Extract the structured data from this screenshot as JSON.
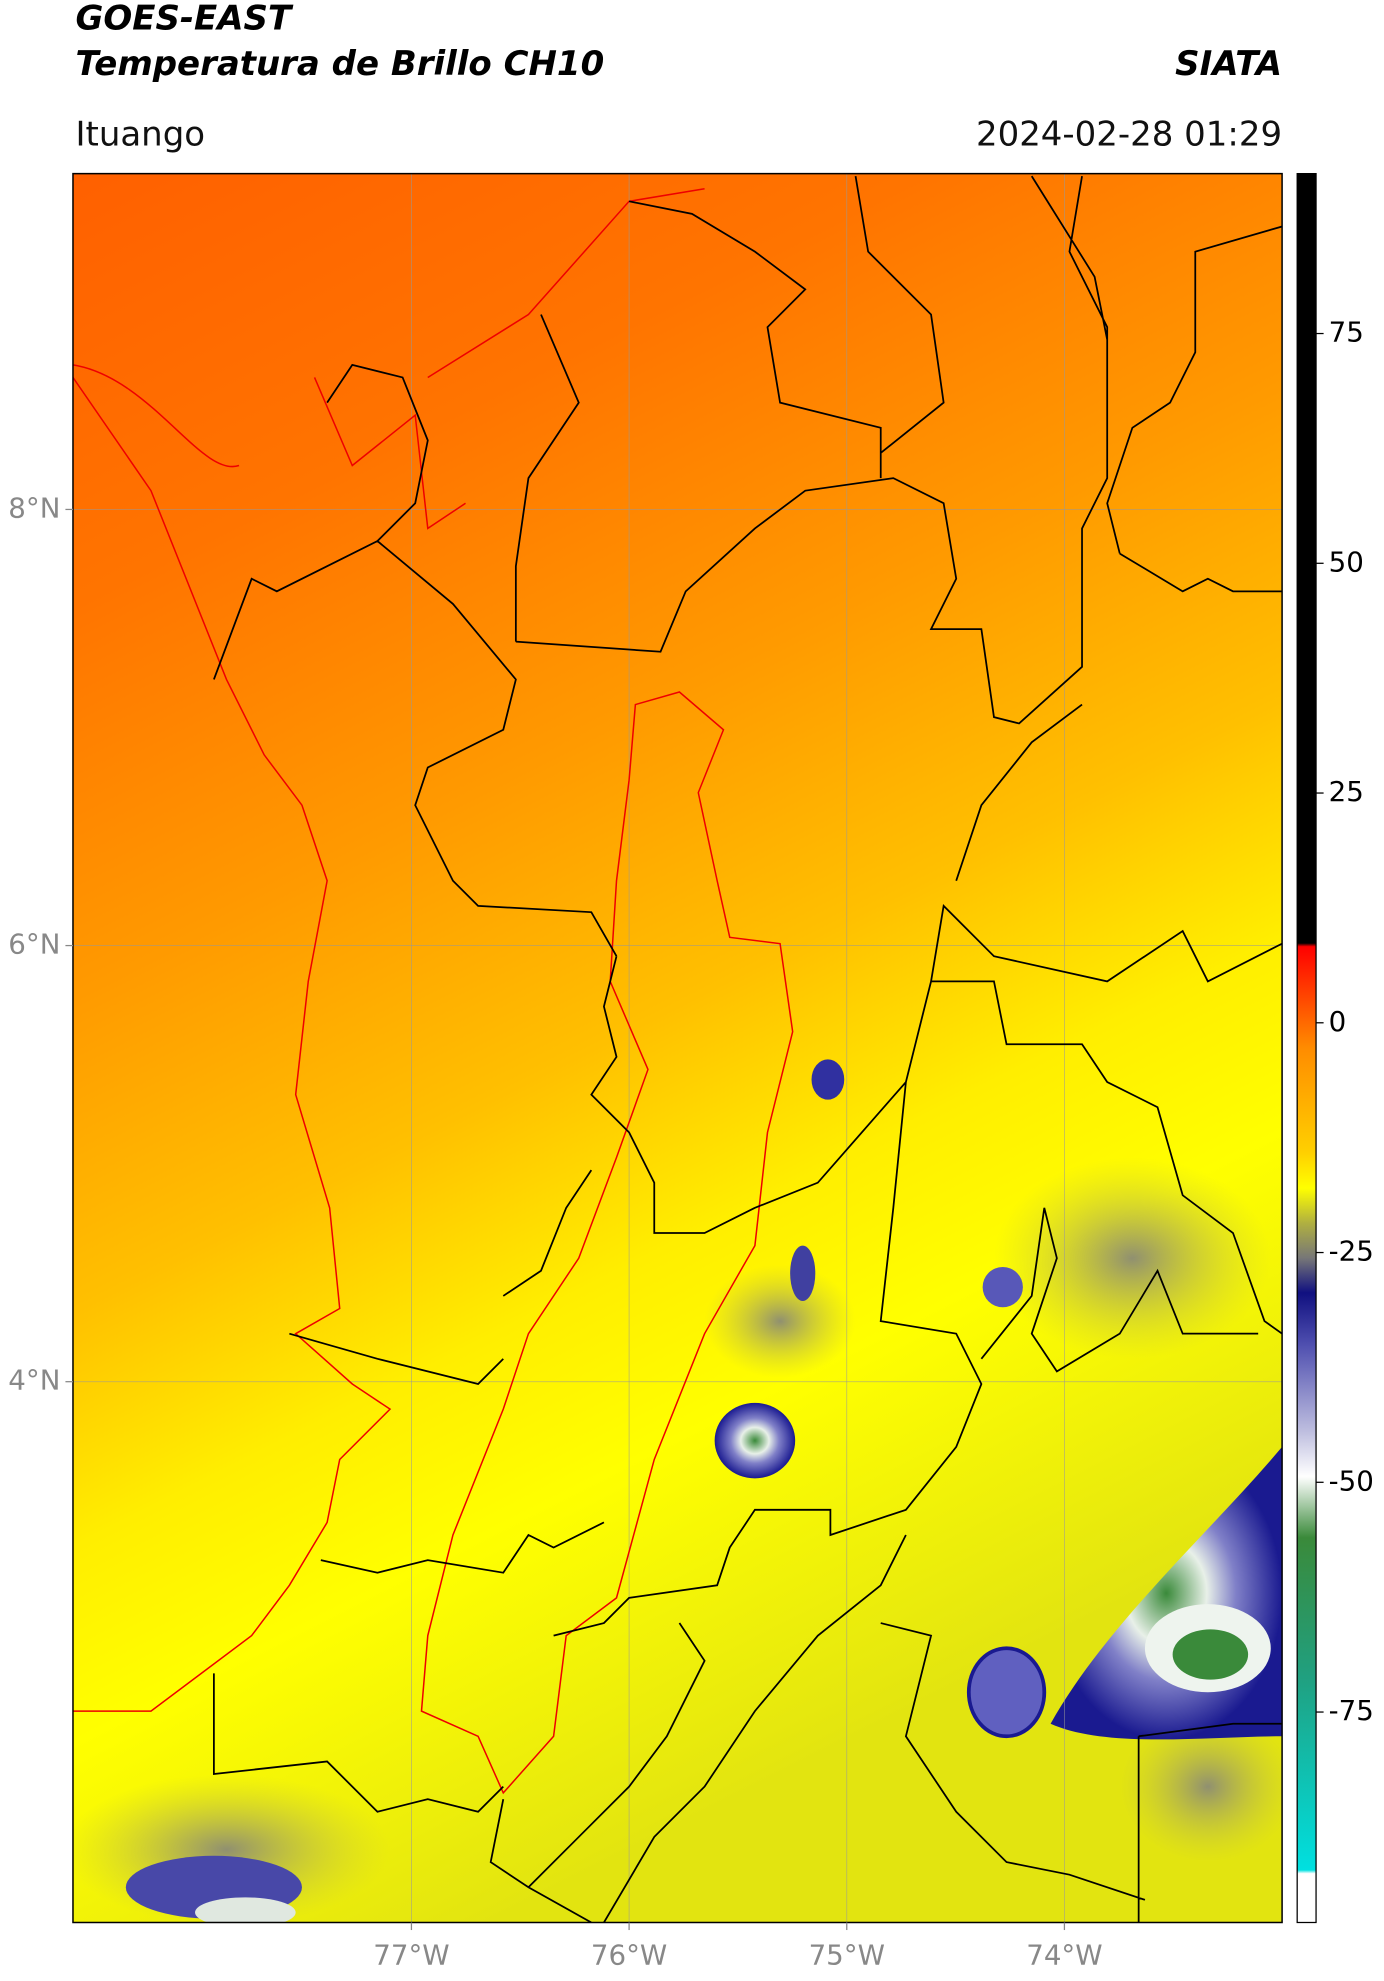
{
  "header": {
    "title": "GOES-EAST",
    "subtitle": "Temperatura de Brillo CH10",
    "source": "SIATA",
    "location": "Ituango",
    "datetime": "2024-02-28 01:29"
  },
  "chart_data": {
    "type": "map",
    "xlim": [
      -78.555,
      -73.0
    ],
    "ylim": [
      1.52,
      9.54
    ],
    "xticks": [
      {
        "value": -77,
        "label": "77°W"
      },
      {
        "value": -76,
        "label": "76°W"
      },
      {
        "value": -75,
        "label": "75°W"
      },
      {
        "value": -74,
        "label": "74°W"
      }
    ],
    "yticks": [
      {
        "value": 4,
        "label": "4°N"
      },
      {
        "value": 6,
        "label": "6°N"
      },
      {
        "value": 8,
        "label": "8°N"
      }
    ],
    "grid": true,
    "colorbar": {
      "clim": [
        -97.9,
        92.4
      ],
      "ticks": [
        -75,
        -50,
        -25,
        0,
        25,
        50,
        75
      ]
    }
  }
}
